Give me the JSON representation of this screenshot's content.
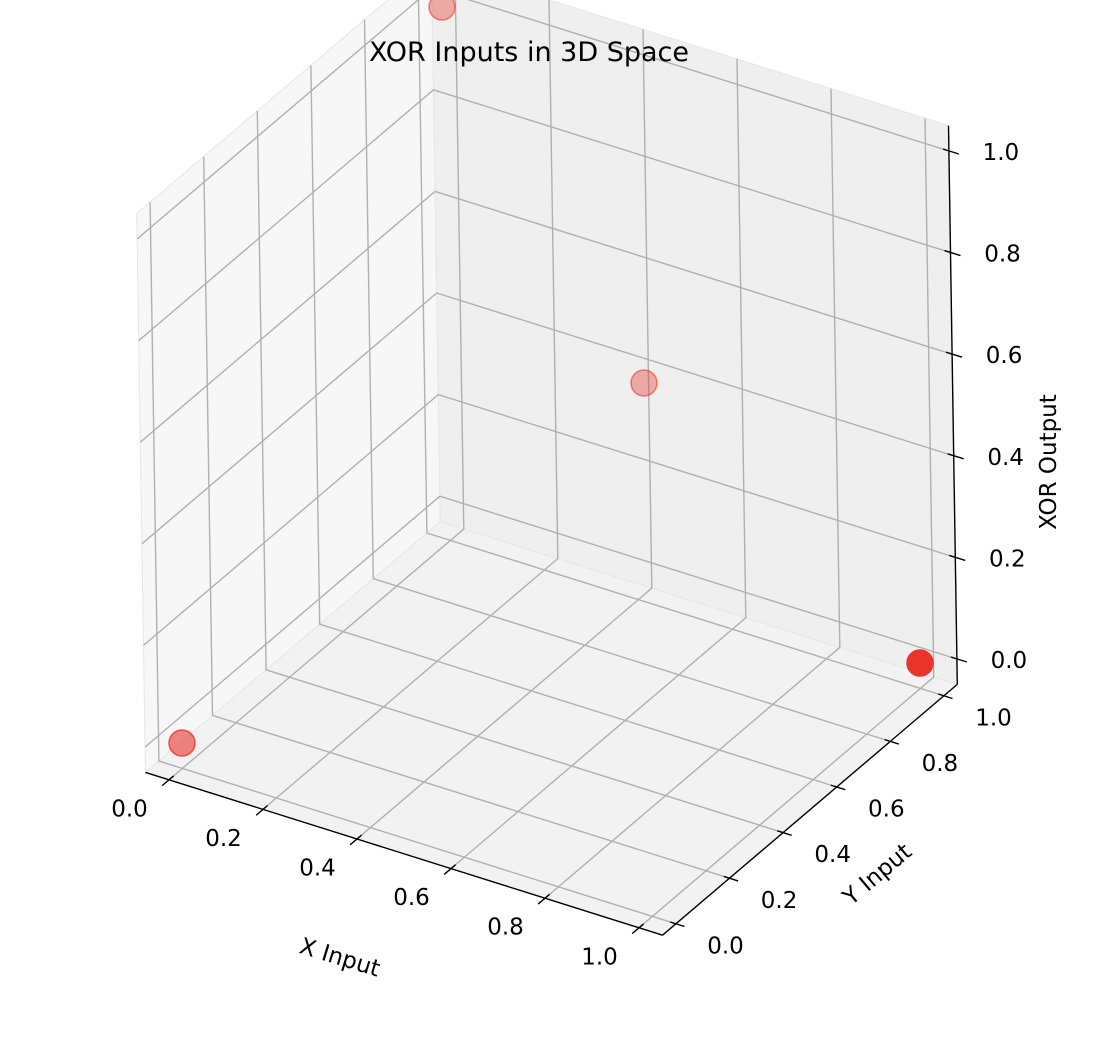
{
  "chart_data": {
    "type": "scatter",
    "title": "XOR Inputs in 3D Space",
    "xlabel": "X Input",
    "ylabel": "Y Input",
    "zlabel": "XOR Output",
    "xlim": [
      -0.05,
      1.05
    ],
    "ylim": [
      -0.05,
      1.05
    ],
    "zlim": [
      -0.05,
      1.05
    ],
    "x_ticks": [
      "0.0",
      "0.2",
      "0.4",
      "0.6",
      "0.8",
      "1.0"
    ],
    "y_ticks": [
      "0.0",
      "0.2",
      "0.4",
      "0.6",
      "0.8",
      "1.0"
    ],
    "z_ticks": [
      "0.0",
      "0.2",
      "0.4",
      "0.6",
      "0.8",
      "1.0"
    ],
    "grid": true,
    "marker_color": "#e8342a",
    "points": [
      {
        "x": 0,
        "y": 0,
        "z": 0
      },
      {
        "x": 0,
        "y": 1,
        "z": 1
      },
      {
        "x": 1,
        "y": 0,
        "z": 1
      },
      {
        "x": 1,
        "y": 1,
        "z": 0
      }
    ]
  }
}
